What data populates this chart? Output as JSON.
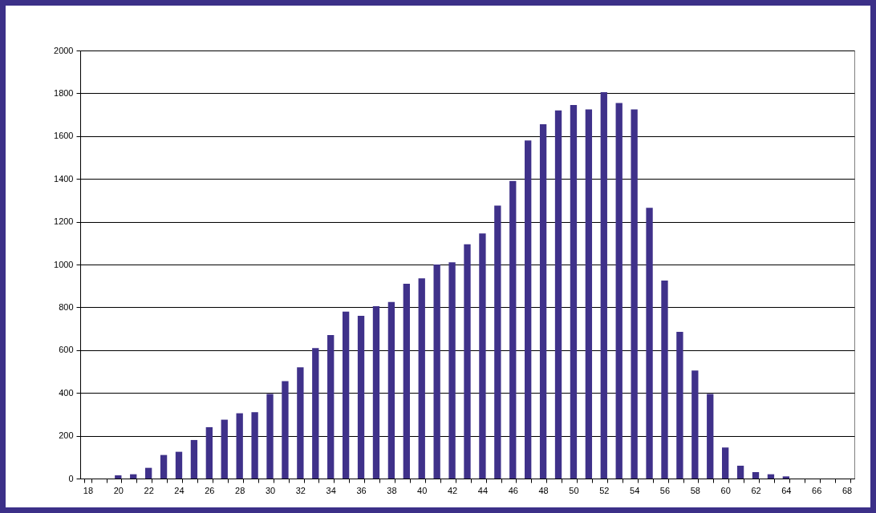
{
  "chart_data": {
    "type": "bar",
    "categories": [
      "18",
      null,
      "20",
      null,
      "22",
      null,
      "24",
      null,
      "26",
      null,
      "28",
      null,
      "30",
      null,
      "32",
      null,
      "34",
      null,
      "36",
      null,
      "38",
      null,
      "40",
      null,
      "42",
      null,
      "44",
      null,
      "46",
      null,
      "48",
      null,
      "50",
      null,
      "52",
      null,
      "54",
      null,
      "56",
      null,
      "58",
      null,
      "60",
      null,
      "62",
      null,
      "64",
      null,
      "66",
      null,
      "68"
    ],
    "values": [
      0,
      0,
      15,
      20,
      50,
      110,
      125,
      180,
      240,
      275,
      305,
      310,
      395,
      455,
      520,
      610,
      670,
      780,
      760,
      805,
      825,
      910,
      935,
      1000,
      1010,
      1095,
      1145,
      1275,
      1390,
      1580,
      1655,
      1720,
      1745,
      1725,
      1805,
      1755,
      1725,
      1265,
      925,
      685,
      505,
      395,
      145,
      60,
      30,
      20,
      10,
      0,
      0,
      0,
      0
    ],
    "color": "#3f318a",
    "ylim": [
      0,
      2000
    ],
    "yticks": [
      0,
      200,
      400,
      600,
      800,
      1000,
      1200,
      1400,
      1600,
      1800,
      2000
    ],
    "grid": "y",
    "legend": false
  }
}
